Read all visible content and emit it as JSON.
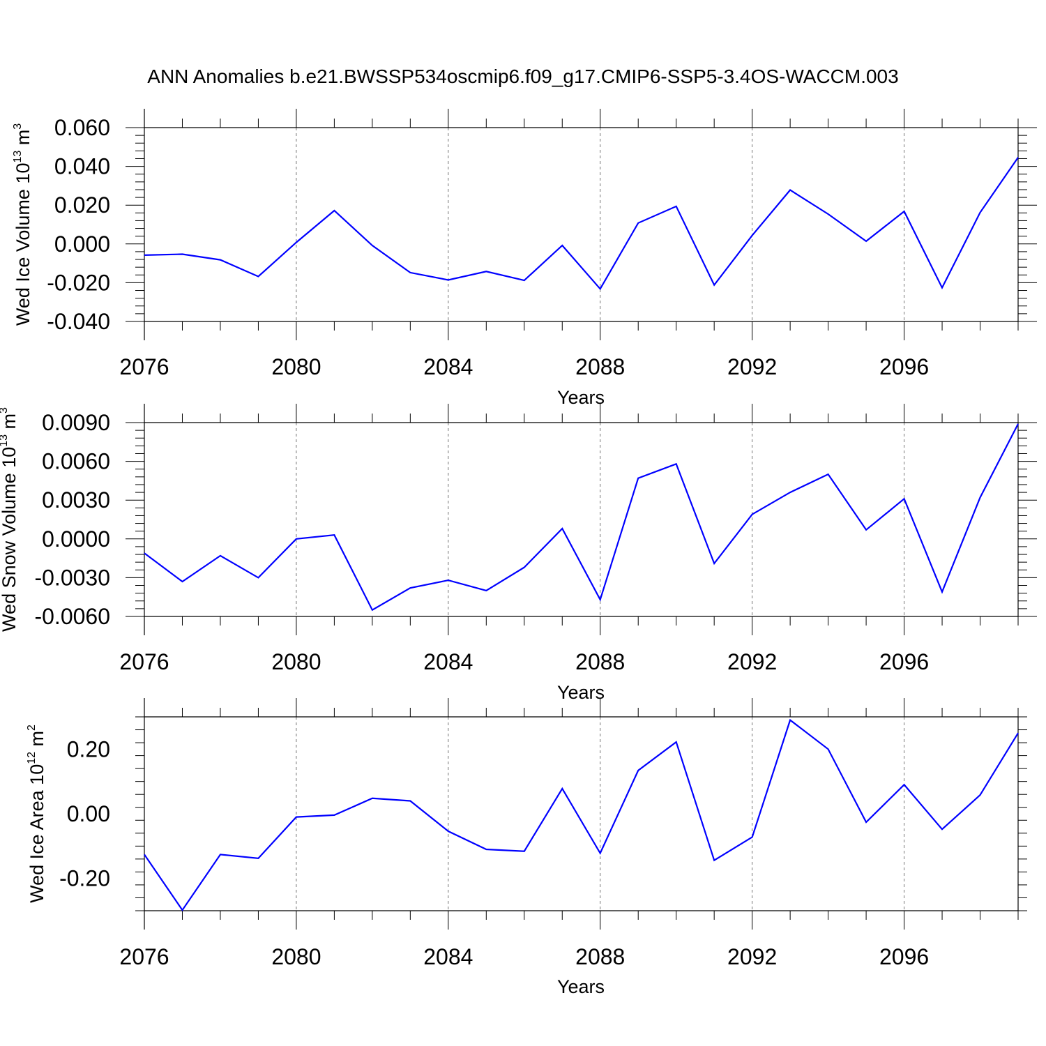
{
  "title": "ANN Anomalies b.e21.BWSSP534oscmip6.f09_g17.CMIP6-SSP5-3.4OS-WACCM.003",
  "colors": {
    "line": "#0000ff",
    "axes": "#000000",
    "grid": "#777777"
  },
  "chart_data": [
    {
      "type": "line",
      "xlabel": "Years",
      "ylabel": {
        "main": "Wed Ice Volume 10",
        "sup": "13",
        "unit": " m",
        "unit_sup": "3"
      },
      "xlim": [
        2076,
        2099
      ],
      "ylim": [
        -0.04,
        0.06
      ],
      "xticks": [
        2076,
        2080,
        2084,
        2088,
        2092,
        2096
      ],
      "xtick_labels": [
        "2076",
        "2080",
        "2084",
        "2088",
        "2092",
        "2096"
      ],
      "yticks": [
        -0.04,
        -0.02,
        0.0,
        0.02,
        0.04,
        0.06
      ],
      "ytick_labels": [
        "-0.040",
        "-0.020",
        "0.000",
        "0.020",
        "0.040",
        "0.060"
      ],
      "grid": "vertical dashed at major x ticks",
      "x": [
        2076,
        2077,
        2078,
        2079,
        2080,
        2081,
        2082,
        2083,
        2084,
        2085,
        2086,
        2087,
        2088,
        2089,
        2090,
        2091,
        2092,
        2093,
        2094,
        2095,
        2096,
        2097,
        2098,
        2099
      ],
      "values": [
        -0.0058,
        -0.0053,
        -0.0082,
        -0.0168,
        0.0008,
        0.0172,
        -0.0008,
        -0.0148,
        -0.0186,
        -0.0142,
        -0.0188,
        -0.0008,
        -0.0232,
        0.0108,
        0.0194,
        -0.0212,
        0.0044,
        0.0278,
        0.0154,
        0.0014,
        0.0168,
        -0.0226,
        0.0162,
        0.0446
      ]
    },
    {
      "type": "line",
      "xlabel": "Years",
      "ylabel": {
        "main": "Wed Snow Volume 10",
        "sup": "13",
        "unit": " m",
        "unit_sup": "3"
      },
      "xlim": [
        2076,
        2099
      ],
      "ylim": [
        -0.006,
        0.009
      ],
      "xticks": [
        2076,
        2080,
        2084,
        2088,
        2092,
        2096
      ],
      "xtick_labels": [
        "2076",
        "2080",
        "2084",
        "2088",
        "2092",
        "2096"
      ],
      "yticks": [
        -0.006,
        -0.003,
        0.0,
        0.003,
        0.006,
        0.009
      ],
      "ytick_labels": [
        "-0.0060",
        "-0.0030",
        "0.0000",
        "0.0030",
        "0.0060",
        "0.0090"
      ],
      "grid": "vertical dashed at major x ticks",
      "x": [
        2076,
        2077,
        2078,
        2079,
        2080,
        2081,
        2082,
        2083,
        2084,
        2085,
        2086,
        2087,
        2088,
        2089,
        2090,
        2091,
        2092,
        2093,
        2094,
        2095,
        2096,
        2097,
        2098,
        2099
      ],
      "values": [
        -0.0011,
        -0.0033,
        -0.0013,
        -0.003,
        0.0,
        0.0003,
        -0.0055,
        -0.0038,
        -0.0032,
        -0.004,
        -0.0022,
        0.0008,
        -0.0047,
        0.0047,
        0.0058,
        -0.0019,
        0.0019,
        0.0036,
        0.005,
        0.0007,
        0.0031,
        -0.0041,
        0.0032,
        0.0089
      ]
    },
    {
      "type": "line",
      "xlabel": "Years",
      "ylabel": {
        "main": "Wed Ice Area 10",
        "sup": "12",
        "unit": " m",
        "unit_sup": "2"
      },
      "xlim": [
        2076,
        2099
      ],
      "ylim": [
        -0.3,
        0.3
      ],
      "xticks": [
        2076,
        2080,
        2084,
        2088,
        2092,
        2096
      ],
      "xtick_labels": [
        "2076",
        "2080",
        "2084",
        "2088",
        "2092",
        "2096"
      ],
      "yticks": [
        -0.2,
        0.0,
        0.2
      ],
      "ytick_labels": [
        "-0.20",
        "0.00",
        "0.20"
      ],
      "grid": "vertical dashed at major x ticks",
      "x": [
        2076,
        2077,
        2078,
        2079,
        2080,
        2081,
        2082,
        2083,
        2084,
        2085,
        2086,
        2087,
        2088,
        2089,
        2090,
        2091,
        2092,
        2093,
        2094,
        2095,
        2096,
        2097,
        2098,
        2099
      ],
      "values": [
        -0.126,
        -0.298,
        -0.126,
        -0.138,
        -0.01,
        -0.004,
        0.048,
        0.04,
        -0.054,
        -0.11,
        -0.116,
        0.078,
        -0.122,
        0.134,
        0.222,
        -0.144,
        -0.072,
        0.29,
        0.2,
        -0.026,
        0.09,
        -0.048,
        0.058,
        0.25
      ]
    }
  ]
}
